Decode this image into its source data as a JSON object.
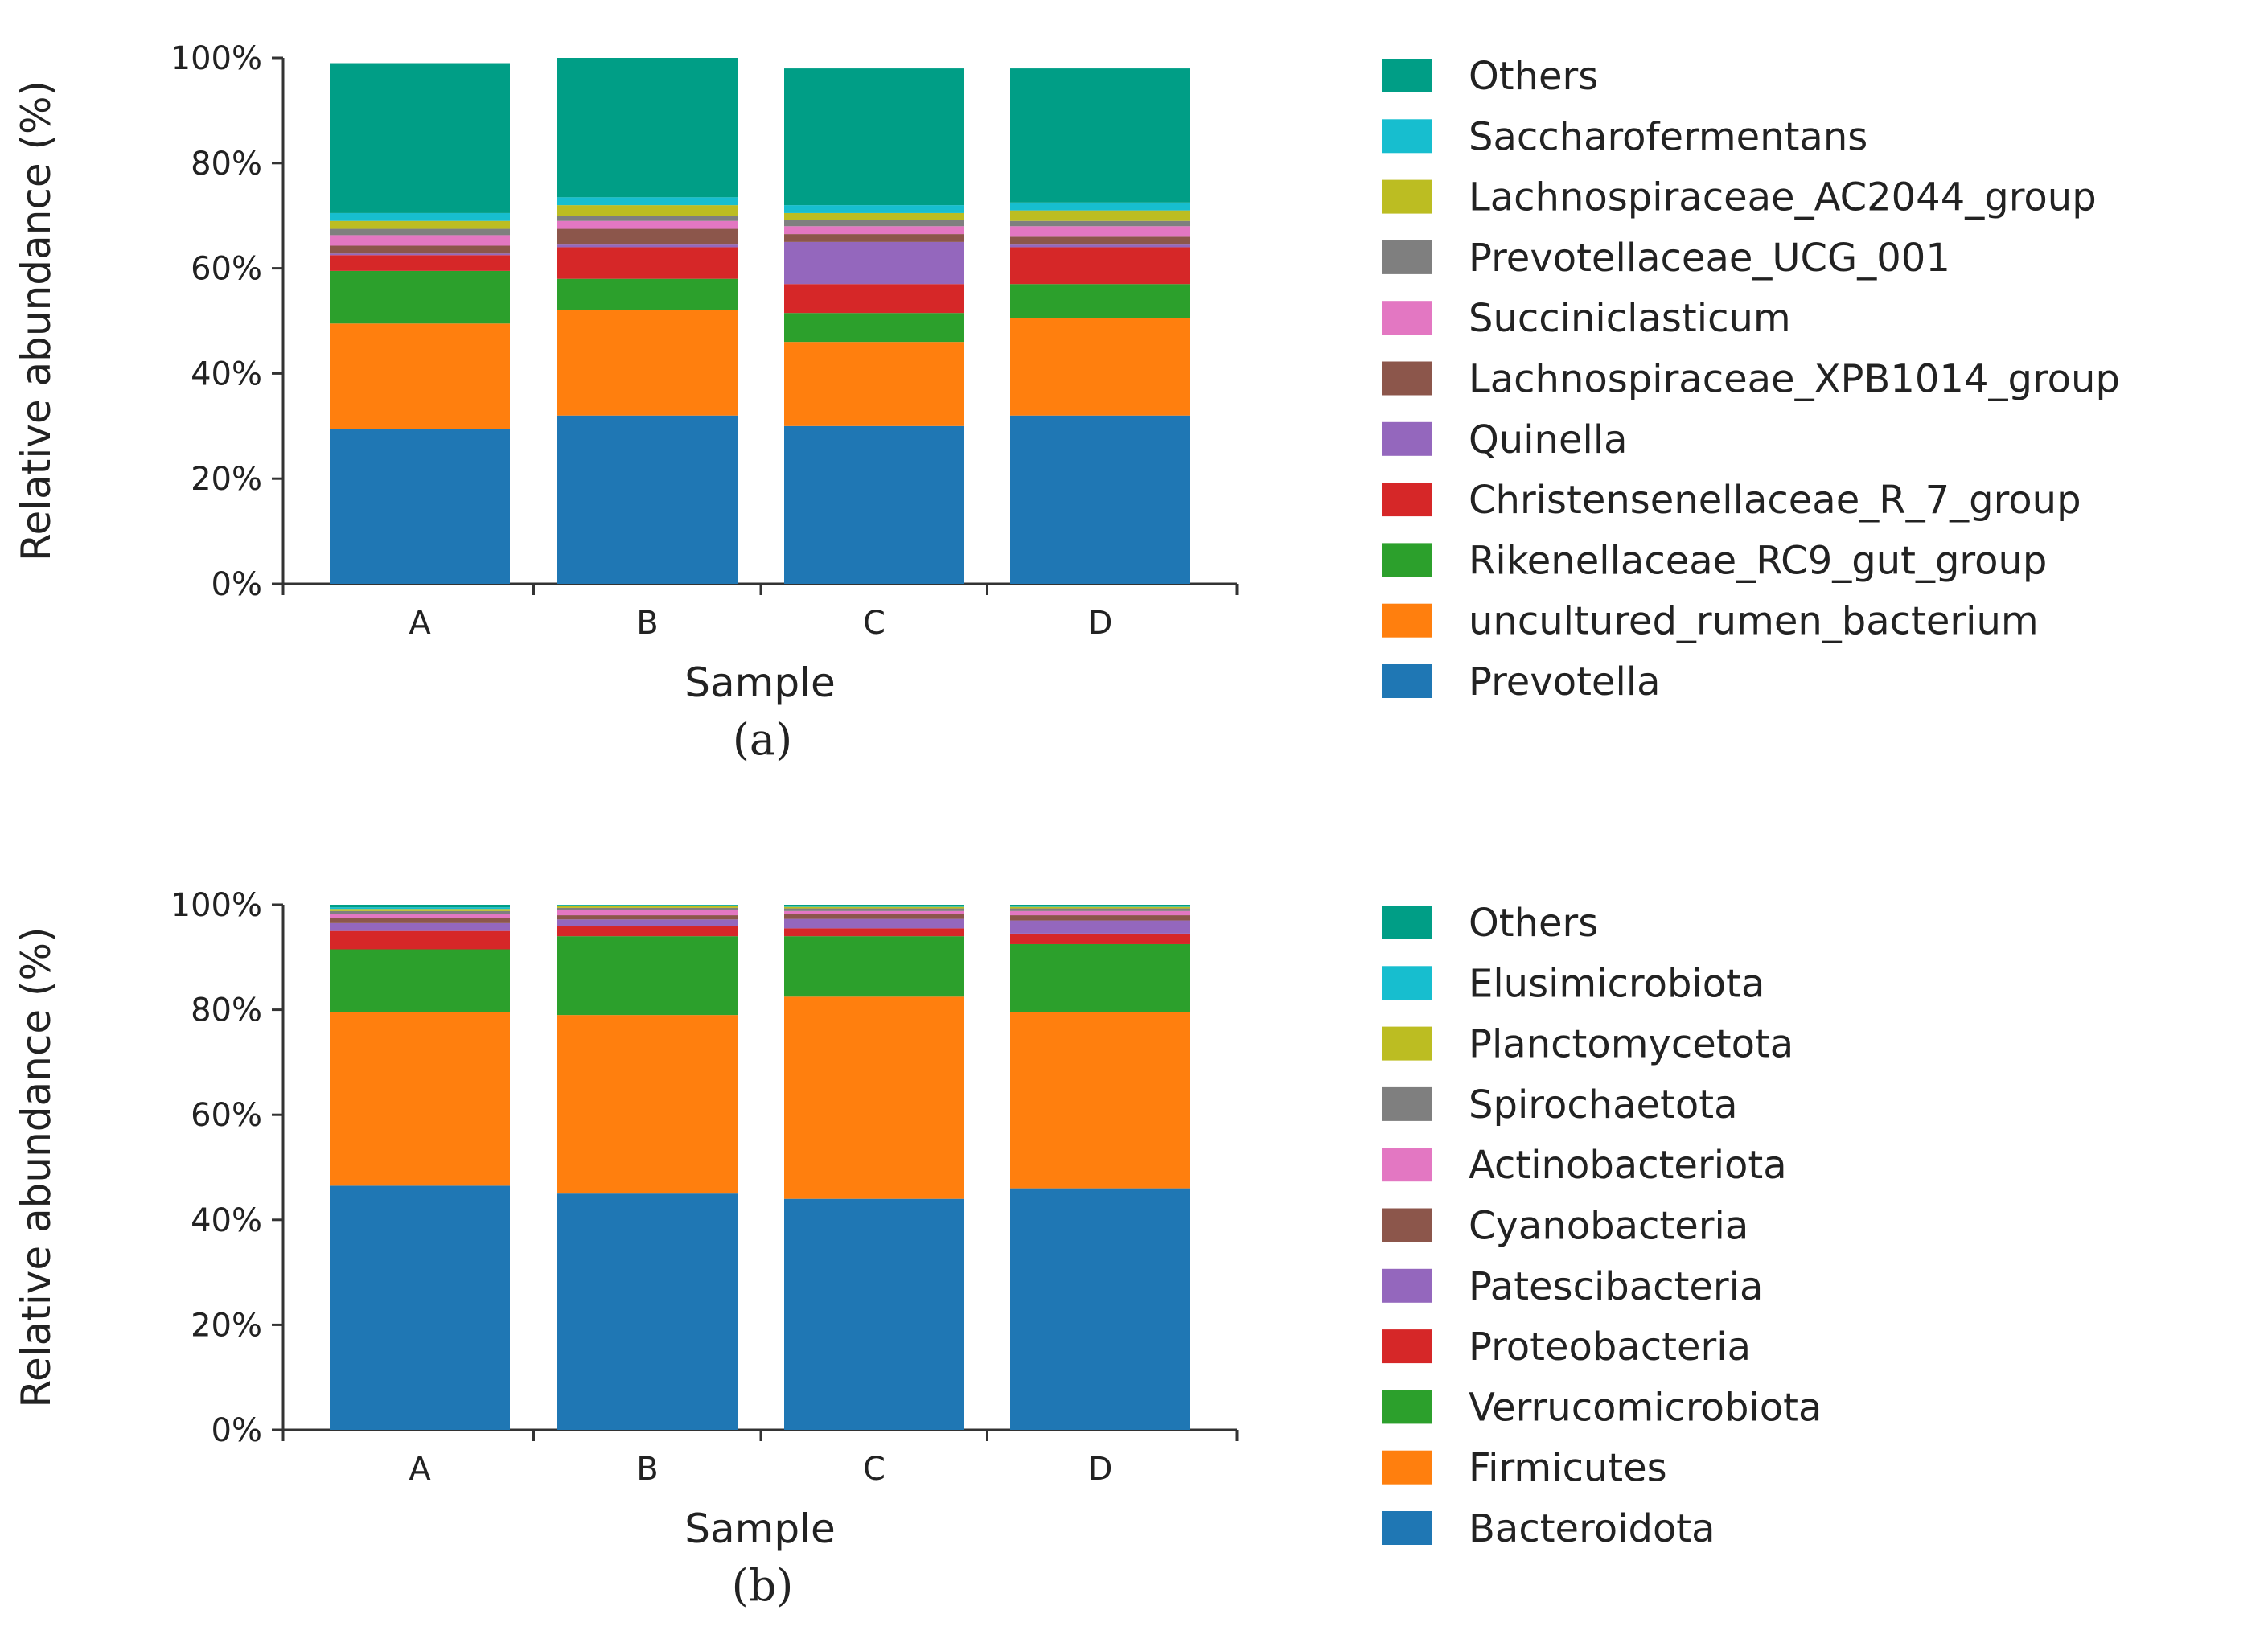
{
  "chart_data": [
    {
      "type": "bar",
      "stacked": true,
      "caption": "(a)",
      "xlabel": "Sample",
      "ylabel": "Relative abundance (%)",
      "ylim": [
        0,
        100
      ],
      "yticks": [
        "0%",
        "20%",
        "40%",
        "60%",
        "80%",
        "100%"
      ],
      "categories": [
        "A",
        "B",
        "C",
        "D"
      ],
      "legend_position": "right",
      "series": [
        {
          "name": "Prevotella",
          "color": "#1f77b4",
          "values": [
            29.5,
            32.0,
            30.0,
            32.0
          ]
        },
        {
          "name": "uncultured_rumen_bacterium",
          "color": "#ff7f0e",
          "values": [
            20.0,
            20.0,
            16.0,
            18.5
          ]
        },
        {
          "name": "Rikenellaceae_RC9_gut_group",
          "color": "#2ca02c",
          "values": [
            10.0,
            6.0,
            5.5,
            6.5
          ]
        },
        {
          "name": "Christensenellaceae_R_7_group",
          "color": "#d62728",
          "values": [
            3.0,
            6.0,
            5.5,
            7.0
          ]
        },
        {
          "name": "Quinella",
          "color": "#9467bd",
          "values": [
            0.3,
            0.5,
            8.0,
            0.5
          ]
        },
        {
          "name": "Lachnospiraceae_XPB1014_group",
          "color": "#8c564b",
          "values": [
            1.5,
            3.0,
            1.5,
            1.5
          ]
        },
        {
          "name": "Succiniclasticum",
          "color": "#e377c2",
          "values": [
            2.0,
            1.5,
            1.5,
            2.0
          ]
        },
        {
          "name": "Prevotellaceae_UCG_001",
          "color": "#7f7f7f",
          "values": [
            1.2,
            1.0,
            1.2,
            1.0
          ]
        },
        {
          "name": "Lachnospiraceae_AC2044_group",
          "color": "#bcbd22",
          "values": [
            1.5,
            2.0,
            1.3,
            2.0
          ]
        },
        {
          "name": "Saccharofermentans",
          "color": "#17becf",
          "values": [
            1.5,
            1.5,
            1.5,
            1.5
          ]
        },
        {
          "name": "Others",
          "color": "#009e86",
          "values": [
            28.5,
            26.5,
            26.0,
            25.5
          ]
        }
      ]
    },
    {
      "type": "bar",
      "stacked": true,
      "caption": "(b)",
      "xlabel": "Sample",
      "ylabel": "Relative abundance (%)",
      "ylim": [
        0,
        100
      ],
      "yticks": [
        "0%",
        "20%",
        "40%",
        "60%",
        "80%",
        "100%"
      ],
      "categories": [
        "A",
        "B",
        "C",
        "D"
      ],
      "legend_position": "right",
      "series": [
        {
          "name": "Bacteroidota",
          "color": "#1f77b4",
          "values": [
            46.5,
            45.0,
            44.0,
            46.0
          ]
        },
        {
          "name": "Firmicutes",
          "color": "#ff7f0e",
          "values": [
            33.0,
            34.0,
            38.5,
            33.5
          ]
        },
        {
          "name": "Verrucomicrobiota",
          "color": "#2ca02c",
          "values": [
            12.0,
            15.0,
            11.5,
            13.0
          ]
        },
        {
          "name": "Proteobacteria",
          "color": "#d62728",
          "values": [
            3.5,
            2.0,
            1.5,
            2.0
          ]
        },
        {
          "name": "Patescibacteria",
          "color": "#9467bd",
          "values": [
            1.5,
            1.2,
            1.8,
            2.5
          ]
        },
        {
          "name": "Cyanobacteria",
          "color": "#8c564b",
          "values": [
            1.0,
            0.8,
            1.0,
            1.0
          ]
        },
        {
          "name": "Actinobacteriota",
          "color": "#e377c2",
          "values": [
            0.8,
            1.0,
            0.5,
            0.8
          ]
        },
        {
          "name": "Spirochaetota",
          "color": "#7f7f7f",
          "values": [
            0.5,
            0.4,
            0.5,
            0.5
          ]
        },
        {
          "name": "Planctomycetota",
          "color": "#bcbd22",
          "values": [
            0.4,
            0.3,
            0.3,
            0.3
          ]
        },
        {
          "name": "Elusimicrobiota",
          "color": "#17becf",
          "values": [
            0.3,
            0.2,
            0.2,
            0.2
          ]
        },
        {
          "name": "Others",
          "color": "#009e86",
          "values": [
            0.5,
            0.1,
            0.2,
            0.2
          ]
        }
      ]
    }
  ]
}
